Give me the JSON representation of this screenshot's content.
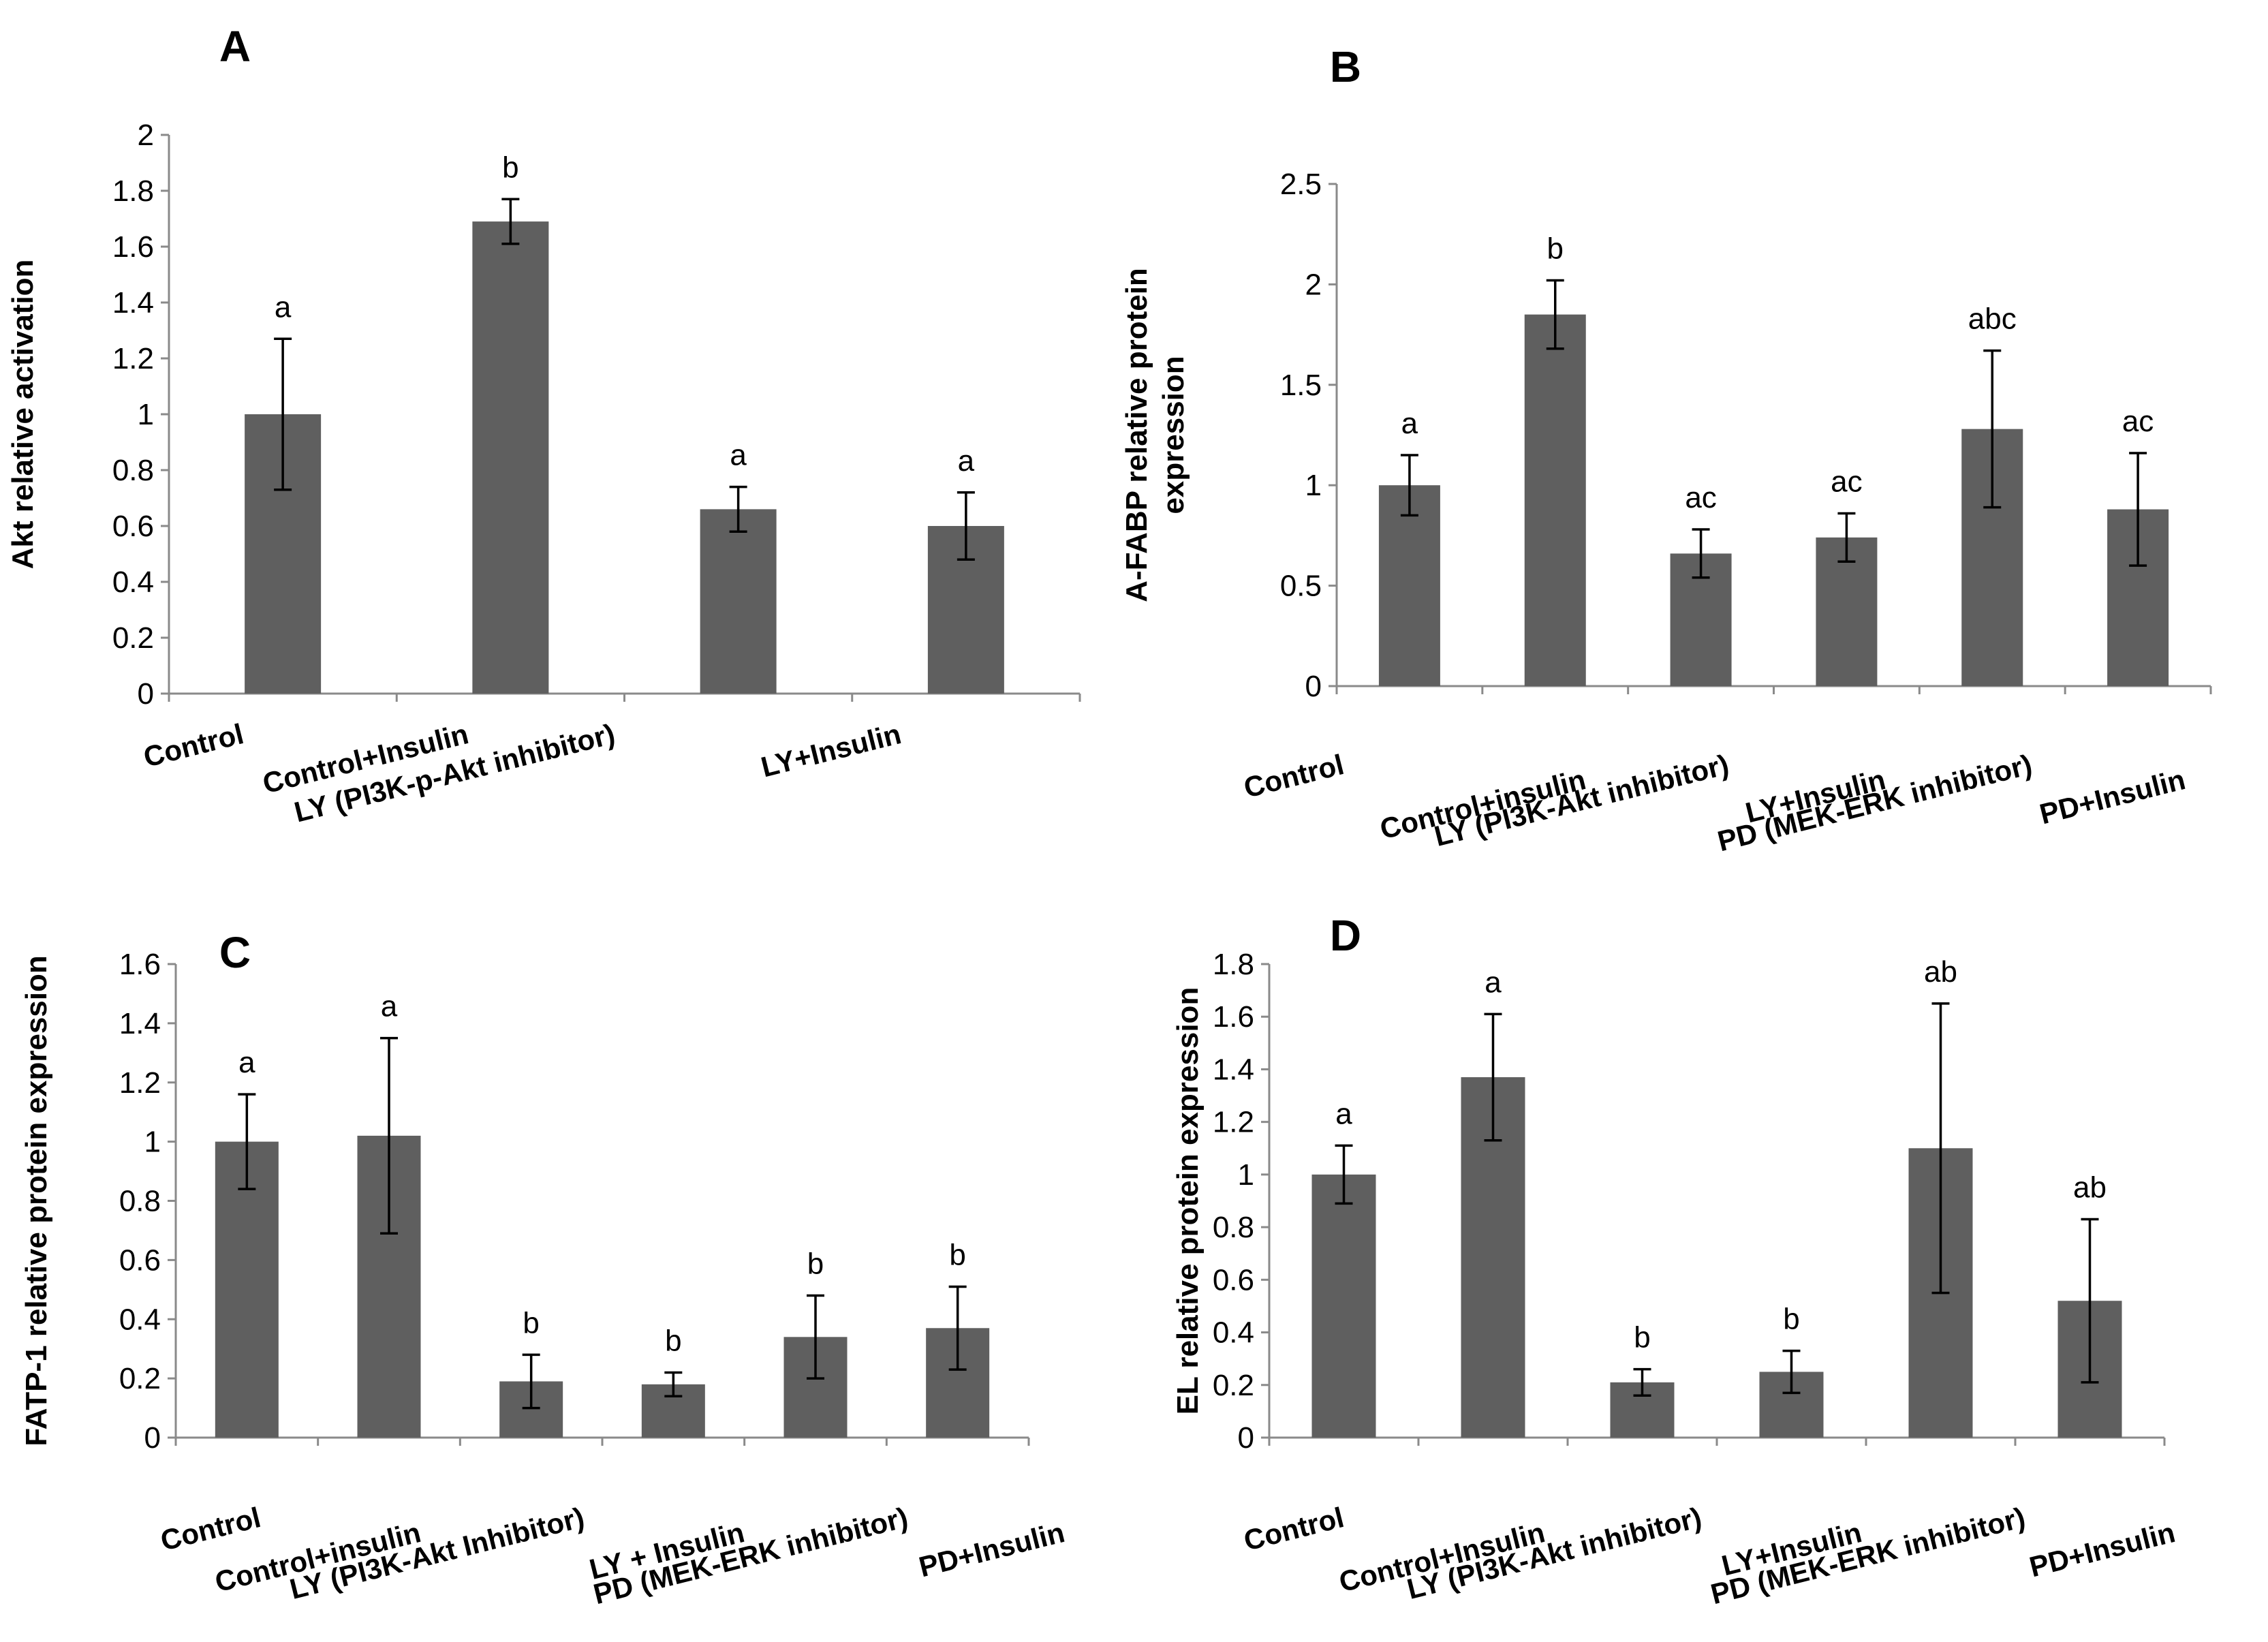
{
  "chart_data": [
    {
      "type": "bar",
      "panel": "A",
      "ylabel": "Akt relative activation",
      "ylim": [
        0,
        2
      ],
      "yticks": [
        "0",
        "0.2",
        "0.4",
        "0.6",
        "0.8",
        "1",
        "1.2",
        "1.4",
        "1.6",
        "1.8",
        "2"
      ],
      "categories": [
        "Control",
        "Control+Insulin",
        "LY (PI3K-p-Akt inhibitor)",
        "LY+Insulin"
      ],
      "values": [
        1.0,
        1.69,
        0.66,
        0.6
      ],
      "errors": [
        0.27,
        0.08,
        0.08,
        0.12
      ],
      "annotations": [
        "a",
        "b",
        "a",
        "a"
      ]
    },
    {
      "type": "bar",
      "panel": "B",
      "ylabel": [
        "A-FABP relative protein",
        "expression"
      ],
      "ylim": [
        0,
        2.5
      ],
      "yticks": [
        "0",
        "0.5",
        "1",
        "1.5",
        "2",
        "2.5"
      ],
      "categories": [
        "Control",
        "Control+insulin",
        "LY (PI3K-Akt inhibitor)",
        "LY+Insulin",
        "PD (MEK-ERK inhibitor)",
        "PD+Insulin"
      ],
      "values": [
        1.0,
        1.85,
        0.66,
        0.74,
        1.28,
        0.88
      ],
      "errors": [
        0.15,
        0.17,
        0.12,
        0.12,
        0.39,
        0.28
      ],
      "annotations": [
        "a",
        "b",
        "ac",
        "ac",
        "abc",
        "ac"
      ]
    },
    {
      "type": "bar",
      "panel": "C",
      "ylabel": "FATP-1 relative protein expression",
      "ylim": [
        0,
        1.6
      ],
      "yticks": [
        "0",
        "0.2",
        "0.4",
        "0.6",
        "0.8",
        "1",
        "1.2",
        "1.4",
        "1.6"
      ],
      "categories": [
        "Control",
        "Control+insulin",
        "LY (PI3K-Akt Inhibitor)",
        "LY + Insulin",
        "PD (MEK-ERK inhibitor)",
        "PD+Insulin"
      ],
      "values": [
        1.0,
        1.02,
        0.19,
        0.18,
        0.34,
        0.37
      ],
      "errors": [
        0.16,
        0.33,
        0.09,
        0.04,
        0.14,
        0.14
      ],
      "annotations": [
        "a",
        "a",
        "b",
        "b",
        "b",
        "b"
      ]
    },
    {
      "type": "bar",
      "panel": "D",
      "ylabel": "EL relative protein expression",
      "ylim": [
        0,
        1.8
      ],
      "yticks": [
        "0",
        "0.2",
        "0.4",
        "0.6",
        "0.8",
        "1",
        "1.2",
        "1.4",
        "1.6",
        "1.8"
      ],
      "categories": [
        "Control",
        "Control+Insulin",
        "LY (PI3K-Akt inhibitor)",
        "LY+Insulin",
        "PD (MEK-ERK inhibitor)",
        "PD+Insulin"
      ],
      "values": [
        1.0,
        1.37,
        0.21,
        0.25,
        1.1,
        0.52
      ],
      "errors": [
        0.11,
        0.24,
        0.05,
        0.08,
        0.55,
        0.31
      ],
      "annotations": [
        "a",
        "a",
        "b",
        "b",
        "ab",
        "ab"
      ]
    }
  ]
}
